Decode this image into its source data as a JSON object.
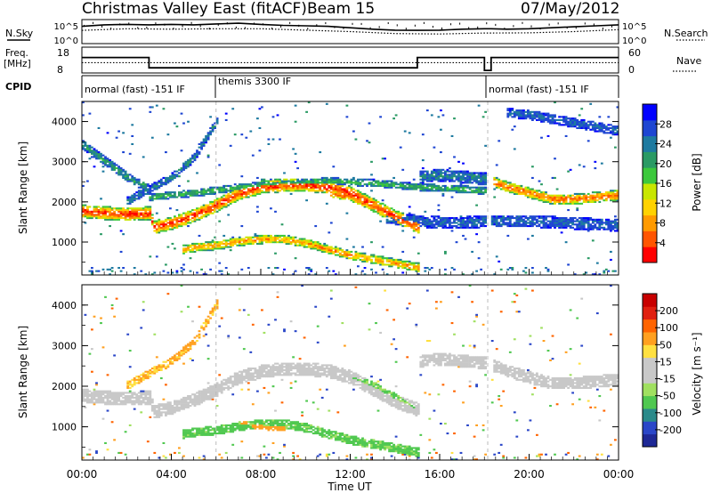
{
  "header": {
    "station": "Christmas Valley East (fitACF)",
    "beam": "Beam 15",
    "date": "07/May/2012"
  },
  "chart_data": [
    {
      "type": "line",
      "panel": "noise",
      "left_label": "N.Sky",
      "right_label": "N.Search",
      "left_ticks": [
        "10^5",
        "10^0"
      ],
      "right_ticks": [
        "10^5",
        "10^0"
      ],
      "x_range_hours": [
        0,
        24
      ],
      "series": [
        {
          "name": "N.Sky",
          "style": "solid",
          "x": [
            0,
            1,
            2,
            3,
            4,
            5,
            6,
            7,
            8,
            9,
            10,
            11,
            12,
            13,
            14,
            15,
            16,
            17,
            18,
            18.3,
            19,
            20,
            21,
            22,
            23,
            24
          ],
          "level": [
            0.72,
            0.78,
            0.8,
            0.78,
            0.8,
            0.78,
            0.82,
            0.85,
            0.8,
            0.76,
            0.74,
            0.72,
            0.66,
            0.6,
            0.56,
            0.55,
            0.56,
            0.6,
            0.62,
            0.62,
            0.6,
            0.62,
            0.66,
            0.7,
            0.74,
            0.78
          ]
        },
        {
          "name": "N.Search",
          "style": "dotted",
          "x": [
            0,
            2,
            4,
            6,
            8,
            10,
            12,
            14,
            16,
            18,
            18.3,
            20,
            22,
            24
          ],
          "level": [
            0.55,
            0.62,
            0.6,
            0.62,
            0.62,
            0.56,
            0.5,
            0.42,
            0.4,
            0.44,
            0.44,
            0.45,
            0.5,
            0.58
          ]
        }
      ]
    },
    {
      "type": "line",
      "panel": "frequency",
      "left_label_lines": [
        "Freq.",
        "[MHz]"
      ],
      "right_label": "Nave",
      "left_ticks": [
        "18",
        "8"
      ],
      "right_ticks": [
        "60",
        "0"
      ],
      "series": [
        {
          "name": "Freq.",
          "style": "solid",
          "x": [
            0,
            3,
            3,
            15,
            15,
            18,
            18,
            18.3,
            18.3,
            24
          ],
          "y": [
            14,
            14,
            10,
            10,
            14,
            14,
            9,
            9,
            14,
            14
          ]
        },
        {
          "name": "Nave",
          "style": "dotted",
          "x": [
            0,
            24
          ],
          "y": [
            12,
            12
          ]
        }
      ],
      "y_range": [
        8,
        18
      ]
    },
    {
      "type": "table",
      "panel": "cpid",
      "label": "CPID",
      "segments": [
        {
          "label": "normal (fast) -151 IF",
          "start": 0,
          "end": 3
        },
        {
          "label": "themis 3300 IF",
          "start": 3,
          "end": 18
        },
        {
          "label": "normal (fast) -151 IF",
          "start": 18.3,
          "end": 24
        }
      ]
    },
    {
      "type": "heatmap",
      "panel": "power",
      "ylabel": "Slant Range [km]",
      "colorbar_label": "Power [dB]",
      "colorbar_ticks": [
        "28",
        "24",
        "20",
        "16",
        "12",
        "8",
        "4"
      ],
      "colorbar_colors": [
        "#ff0000",
        "#ff5500",
        "#ff9a00",
        "#ffd200",
        "#c8e600",
        "#3cc83c",
        "#2a9a64",
        "#1e7aa0",
        "#1e46d2",
        "#0000ff"
      ],
      "ylim": [
        180,
        4500
      ],
      "yticks": [
        "4000",
        "3000",
        "2000",
        "1000"
      ],
      "bands": [
        {
          "t": [
            0,
            1,
            2,
            3,
            3.2,
            4,
            5,
            6,
            7,
            8,
            9,
            10,
            11,
            12,
            13,
            14,
            15
          ],
          "r": [
            1750,
            1700,
            1680,
            1700,
            1350,
            1450,
            1650,
            1900,
            2200,
            2350,
            2400,
            2400,
            2350,
            2200,
            1900,
            1600,
            1400
          ],
          "width": 330,
          "peak": 28
        },
        {
          "t": [
            4.5,
            5,
            6,
            7,
            8,
            9,
            10,
            11,
            12,
            13,
            14,
            15
          ],
          "r": [
            800,
            850,
            900,
            1000,
            1050,
            1050,
            950,
            800,
            650,
            550,
            450,
            350
          ],
          "width": 220,
          "peak": 24
        },
        {
          "t": [
            11,
            12,
            13,
            14,
            15
          ],
          "r": [
            2200,
            2100,
            1850,
            1550,
            1300
          ],
          "width": 200,
          "peak": 26
        },
        {
          "t": [
            15,
            16,
            17,
            18
          ],
          "r": [
            2600,
            2650,
            2600,
            2550
          ],
          "width": 300,
          "peak": 10
        },
        {
          "t": [
            18.3,
            19,
            20,
            21,
            22,
            23,
            24
          ],
          "r": [
            2500,
            2350,
            2200,
            2050,
            2050,
            2100,
            2150
          ],
          "width": 260,
          "peak": 26
        },
        {
          "t": [
            0,
            0.5,
            1,
            1.5,
            2,
            2.5,
            3
          ],
          "r": [
            3400,
            3200,
            3000,
            2800,
            2600,
            2450,
            2300
          ],
          "width": 220,
          "peak": 12
        },
        {
          "t": [
            2,
            3,
            4,
            5,
            6
          ],
          "r": [
            2000,
            2300,
            2600,
            3100,
            4000
          ],
          "width": 200,
          "peak": 10
        },
        {
          "t": [
            19,
            20,
            21,
            22,
            23,
            24
          ],
          "r": [
            4200,
            4150,
            4050,
            3950,
            3850,
            3750
          ],
          "width": 240,
          "peak": 8
        },
        {
          "t": [
            3,
            5,
            7,
            9,
            11,
            13,
            15,
            17,
            18
          ],
          "r": [
            2100,
            2200,
            2350,
            2450,
            2500,
            2450,
            2350,
            2300,
            2250
          ],
          "width": 180,
          "peak": 14
        },
        {
          "t": [
            13.5,
            15,
            16.5,
            18,
            20,
            22,
            24
          ],
          "r": [
            1600,
            1500,
            1450,
            1500,
            1500,
            1450,
            1400
          ],
          "width": 300,
          "peak": 8
        }
      ]
    },
    {
      "type": "heatmap",
      "panel": "velocity",
      "ylabel": "Slant Range [km]",
      "colorbar_label": "Velocity [m s⁻¹]",
      "colorbar_ticks": [
        "200",
        "100",
        "50",
        "15",
        "-15",
        "-50",
        "-100",
        "-200"
      ],
      "colorbar_colors": [
        "#1e2896",
        "#2a46c8",
        "#2a8a8a",
        "#50c850",
        "#a0e060",
        "#c8c8c8",
        "#c8c8c8",
        "#ffe040",
        "#ffa020",
        "#ff6400",
        "#e02010",
        "#c80000"
      ],
      "ylim": [
        180,
        4500
      ],
      "yticks": [
        "4000",
        "3000",
        "2000",
        "1000"
      ],
      "xticks": [
        "00:00",
        "04:00",
        "08:00",
        "12:00",
        "16:00",
        "20:00",
        "00:00"
      ],
      "xlabel": "Time UT",
      "bands": [
        {
          "t": [
            0,
            1,
            2,
            3,
            3.2,
            4,
            5,
            6,
            7,
            8,
            9,
            10,
            11,
            12,
            13,
            14,
            15
          ],
          "r": [
            1750,
            1700,
            1680,
            1700,
            1350,
            1450,
            1650,
            1900,
            2200,
            2350,
            2400,
            2400,
            2350,
            2200,
            1900,
            1600,
            1400
          ],
          "width": 330,
          "vel": 0
        },
        {
          "t": [
            4.5,
            5,
            6,
            7,
            8,
            9,
            10,
            11,
            12,
            13,
            14,
            15
          ],
          "r": [
            800,
            850,
            900,
            1000,
            1050,
            1050,
            950,
            800,
            650,
            550,
            450,
            350
          ],
          "width": 220,
          "vel": 45
        },
        {
          "t": [
            7,
            8,
            9
          ],
          "r": [
            1050,
            1000,
            950
          ],
          "width": 180,
          "vel": -55
        },
        {
          "t": [
            15,
            16,
            17,
            18
          ],
          "r": [
            2600,
            2650,
            2600,
            2550
          ],
          "width": 300,
          "vel": 0
        },
        {
          "t": [
            18.3,
            19,
            20,
            21,
            22,
            23,
            24
          ],
          "r": [
            2500,
            2350,
            2200,
            2050,
            2050,
            2100,
            2150
          ],
          "width": 300,
          "vel": 0
        },
        {
          "t": [
            2,
            3,
            4,
            5,
            6
          ],
          "r": [
            2000,
            2300,
            2600,
            3100,
            4000
          ],
          "width": 200,
          "vel": -40
        },
        {
          "t": [
            12,
            13,
            14,
            15
          ],
          "r": [
            2200,
            2000,
            1700,
            1400
          ],
          "width": 180,
          "vel": 40
        }
      ]
    }
  ]
}
